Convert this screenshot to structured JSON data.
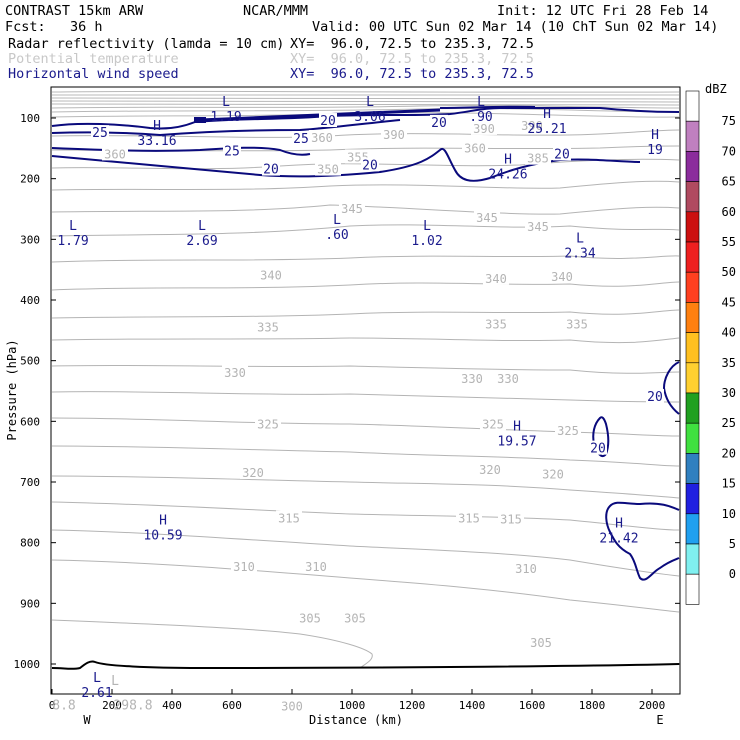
{
  "header": {
    "model": "CONTRAST 15km ARW",
    "center": "NCAR/MMM",
    "init": "Init: 12 UTC Fri 28 Feb 14",
    "fcst_label": "Fcst:",
    "fcst_value": "36 h",
    "valid": "Valid: 00 UTC Sun 02 Mar 14 (10 ChT Sun 02 Mar 14)",
    "fields": [
      {
        "name": "Radar reflectivity (lamda = 10 cm)",
        "xy": "XY=  96.0, 72.5 to 235.3, 72.5"
      },
      {
        "name": "Potential temperature",
        "xy": "XY=  96.0, 72.5 to 235.3, 72.5"
      },
      {
        "name": "Horizontal wind speed",
        "xy": "XY=  96.0, 72.5 to 235.3, 72.5"
      }
    ]
  },
  "colorbar": {
    "unit": "dBZ",
    "levels": [
      "75",
      "70",
      "65",
      "60",
      "55",
      "50",
      "45",
      "40",
      "35",
      "30",
      "25",
      "20",
      "15",
      "10",
      "5",
      "0"
    ],
    "colors": [
      "#ffffff",
      "#c080c0",
      "#8b2c9c",
      "#b04a60",
      "#cc1010",
      "#ee2020",
      "#ff4020",
      "#ff8010",
      "#ffc020",
      "#ffd030",
      "#20a020",
      "#40e040",
      "#3080c0",
      "#2020e0",
      "#20a0f0",
      "#80f0f0",
      "#ffffff"
    ]
  },
  "chart_data": {
    "type": "contour",
    "xlabel": "Distance (km)",
    "ylabel": "Pressure (hPa)",
    "xlim": [
      0,
      2090
    ],
    "ylim": [
      1000,
      100
    ],
    "x_ticks": [
      0,
      200,
      400,
      600,
      800,
      1000,
      1200,
      1400,
      1600,
      1800,
      2000
    ],
    "y_ticks": [
      100,
      200,
      300,
      400,
      500,
      600,
      700,
      800,
      900,
      1000
    ],
    "end_labels": {
      "left": "W",
      "right": "E"
    },
    "theta_labels": [
      {
        "text": "345",
        "x": 1000,
        "p": 250
      },
      {
        "text": "345",
        "x": 1450,
        "p": 265
      },
      {
        "text": "345",
        "x": 1620,
        "p": 280
      },
      {
        "text": "340",
        "x": 730,
        "p": 360
      },
      {
        "text": "340",
        "x": 1480,
        "p": 365
      },
      {
        "text": "340",
        "x": 1700,
        "p": 362
      },
      {
        "text": "335",
        "x": 720,
        "p": 445
      },
      {
        "text": "335",
        "x": 1480,
        "p": 440
      },
      {
        "text": "335",
        "x": 1750,
        "p": 440
      },
      {
        "text": "330",
        "x": 610,
        "p": 520
      },
      {
        "text": "330",
        "x": 1400,
        "p": 530
      },
      {
        "text": "330",
        "x": 1520,
        "p": 530
      },
      {
        "text": "325",
        "x": 720,
        "p": 605
      },
      {
        "text": "325",
        "x": 1470,
        "p": 605
      },
      {
        "text": "325",
        "x": 1720,
        "p": 616
      },
      {
        "text": "320",
        "x": 670,
        "p": 685
      },
      {
        "text": "320",
        "x": 1460,
        "p": 680
      },
      {
        "text": "320",
        "x": 1670,
        "p": 688
      },
      {
        "text": "315",
        "x": 790,
        "p": 760
      },
      {
        "text": "315",
        "x": 1390,
        "p": 760
      },
      {
        "text": "315",
        "x": 1530,
        "p": 762
      },
      {
        "text": "310",
        "x": 640,
        "p": 840
      },
      {
        "text": "310",
        "x": 880,
        "p": 840
      },
      {
        "text": "310",
        "x": 1580,
        "p": 843
      },
      {
        "text": "305",
        "x": 860,
        "p": 925
      },
      {
        "text": "305",
        "x": 1010,
        "p": 925
      },
      {
        "text": "305",
        "x": 1630,
        "p": 965
      },
      {
        "text": "300",
        "x": 800,
        "p": 1070
      },
      {
        "text": "350",
        "x": 920,
        "p": 185
      },
      {
        "text": "355",
        "x": 1020,
        "p": 165
      },
      {
        "text": "360",
        "x": 900,
        "p": 133
      },
      {
        "text": "360",
        "x": 1410,
        "p": 150
      },
      {
        "text": "385",
        "x": 1620,
        "p": 167
      },
      {
        "text": "390",
        "x": 1140,
        "p": 128
      },
      {
        "text": "390",
        "x": 1440,
        "p": 118
      },
      {
        "text": "390",
        "x": 1600,
        "p": 113
      },
      {
        "text": "360",
        "x": 210,
        "p": 160
      }
    ],
    "wind_labels": [
      {
        "text": "25",
        "x": 160,
        "p": 125
      },
      {
        "text": "25",
        "x": 830,
        "p": 135
      },
      {
        "text": "25",
        "x": 600,
        "p": 155
      },
      {
        "text": "20",
        "x": 920,
        "p": 105
      },
      {
        "text": "20",
        "x": 1290,
        "p": 108
      },
      {
        "text": "20",
        "x": 730,
        "p": 185
      },
      {
        "text": "20",
        "x": 1060,
        "p": 178
      },
      {
        "text": "20",
        "x": 1700,
        "p": 160
      },
      {
        "text": "20",
        "x": 2010,
        "p": 560
      },
      {
        "text": "20",
        "x": 1820,
        "p": 645
      }
    ],
    "extrema": [
      {
        "type": "L",
        "value": "1.19",
        "x": 580,
        "p": 80
      },
      {
        "type": "L",
        "value": "3.06",
        "x": 1060,
        "p": 80
      },
      {
        "type": "L",
        "value": ".90",
        "x": 1430,
        "p": 80
      },
      {
        "type": "H",
        "value": "25.21",
        "x": 1650,
        "p": 100
      },
      {
        "type": "H",
        "value": "33.16",
        "x": 350,
        "p": 120
      },
      {
        "type": "H",
        "value": "19",
        "x": 2010,
        "p": 135
      },
      {
        "type": "H",
        "value": "24.26",
        "x": 1520,
        "p": 175
      },
      {
        "type": "L",
        "value": "1.79",
        "x": 70,
        "p": 285
      },
      {
        "type": "L",
        "value": "2.69",
        "x": 500,
        "p": 285
      },
      {
        "type": "L",
        "value": ".60",
        "x": 950,
        "p": 275
      },
      {
        "type": "L",
        "value": "1.02",
        "x": 1250,
        "p": 285
      },
      {
        "type": "L",
        "value": "2.34",
        "x": 1760,
        "p": 305
      },
      {
        "type": "H",
        "value": "19.57",
        "x": 1550,
        "p": 615
      },
      {
        "type": "H",
        "value": "10.59",
        "x": 370,
        "p": 770
      },
      {
        "type": "H",
        "value": "21.42",
        "x": 1890,
        "p": 775
      },
      {
        "type": "L",
        "value": "2.61",
        "x": 150,
        "p": 1030
      }
    ],
    "surface_text": [
      {
        "text": "8.8",
        "x": 40,
        "p": 1075,
        "color": "grey"
      },
      {
        "text": "L",
        "x": 210,
        "p": 1035,
        "color": "grey"
      },
      {
        "text": "298.8",
        "x": 270,
        "p": 1075,
        "color": "grey"
      }
    ]
  }
}
